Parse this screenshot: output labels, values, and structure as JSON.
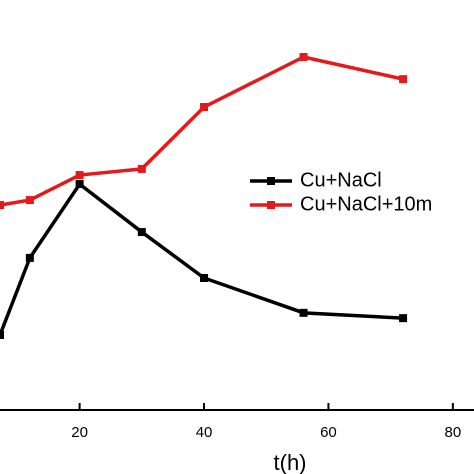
{
  "chart_data": {
    "type": "line",
    "xlabel": "t(h)",
    "xlim": [
      7.2,
      83.4
    ],
    "xticks": [
      20,
      40,
      60,
      80
    ],
    "ylim": [
      0,
      100
    ],
    "series": [
      {
        "name": "Cu+NaCl",
        "color": "#000000",
        "x": [
          7.2,
          12,
          20,
          30,
          40,
          56,
          72
        ],
        "values": [
          18.3,
          37.1,
          55.1,
          43.4,
          32.2,
          23.7,
          22.4
        ]
      },
      {
        "name": "Cu+NaCl+10m",
        "color": "#e31a1c",
        "x": [
          7.2,
          12,
          20,
          30,
          40,
          56,
          72
        ],
        "values": [
          50,
          51.2,
          57.3,
          58.8,
          73.9,
          86.1,
          80.7
        ]
      }
    ]
  }
}
